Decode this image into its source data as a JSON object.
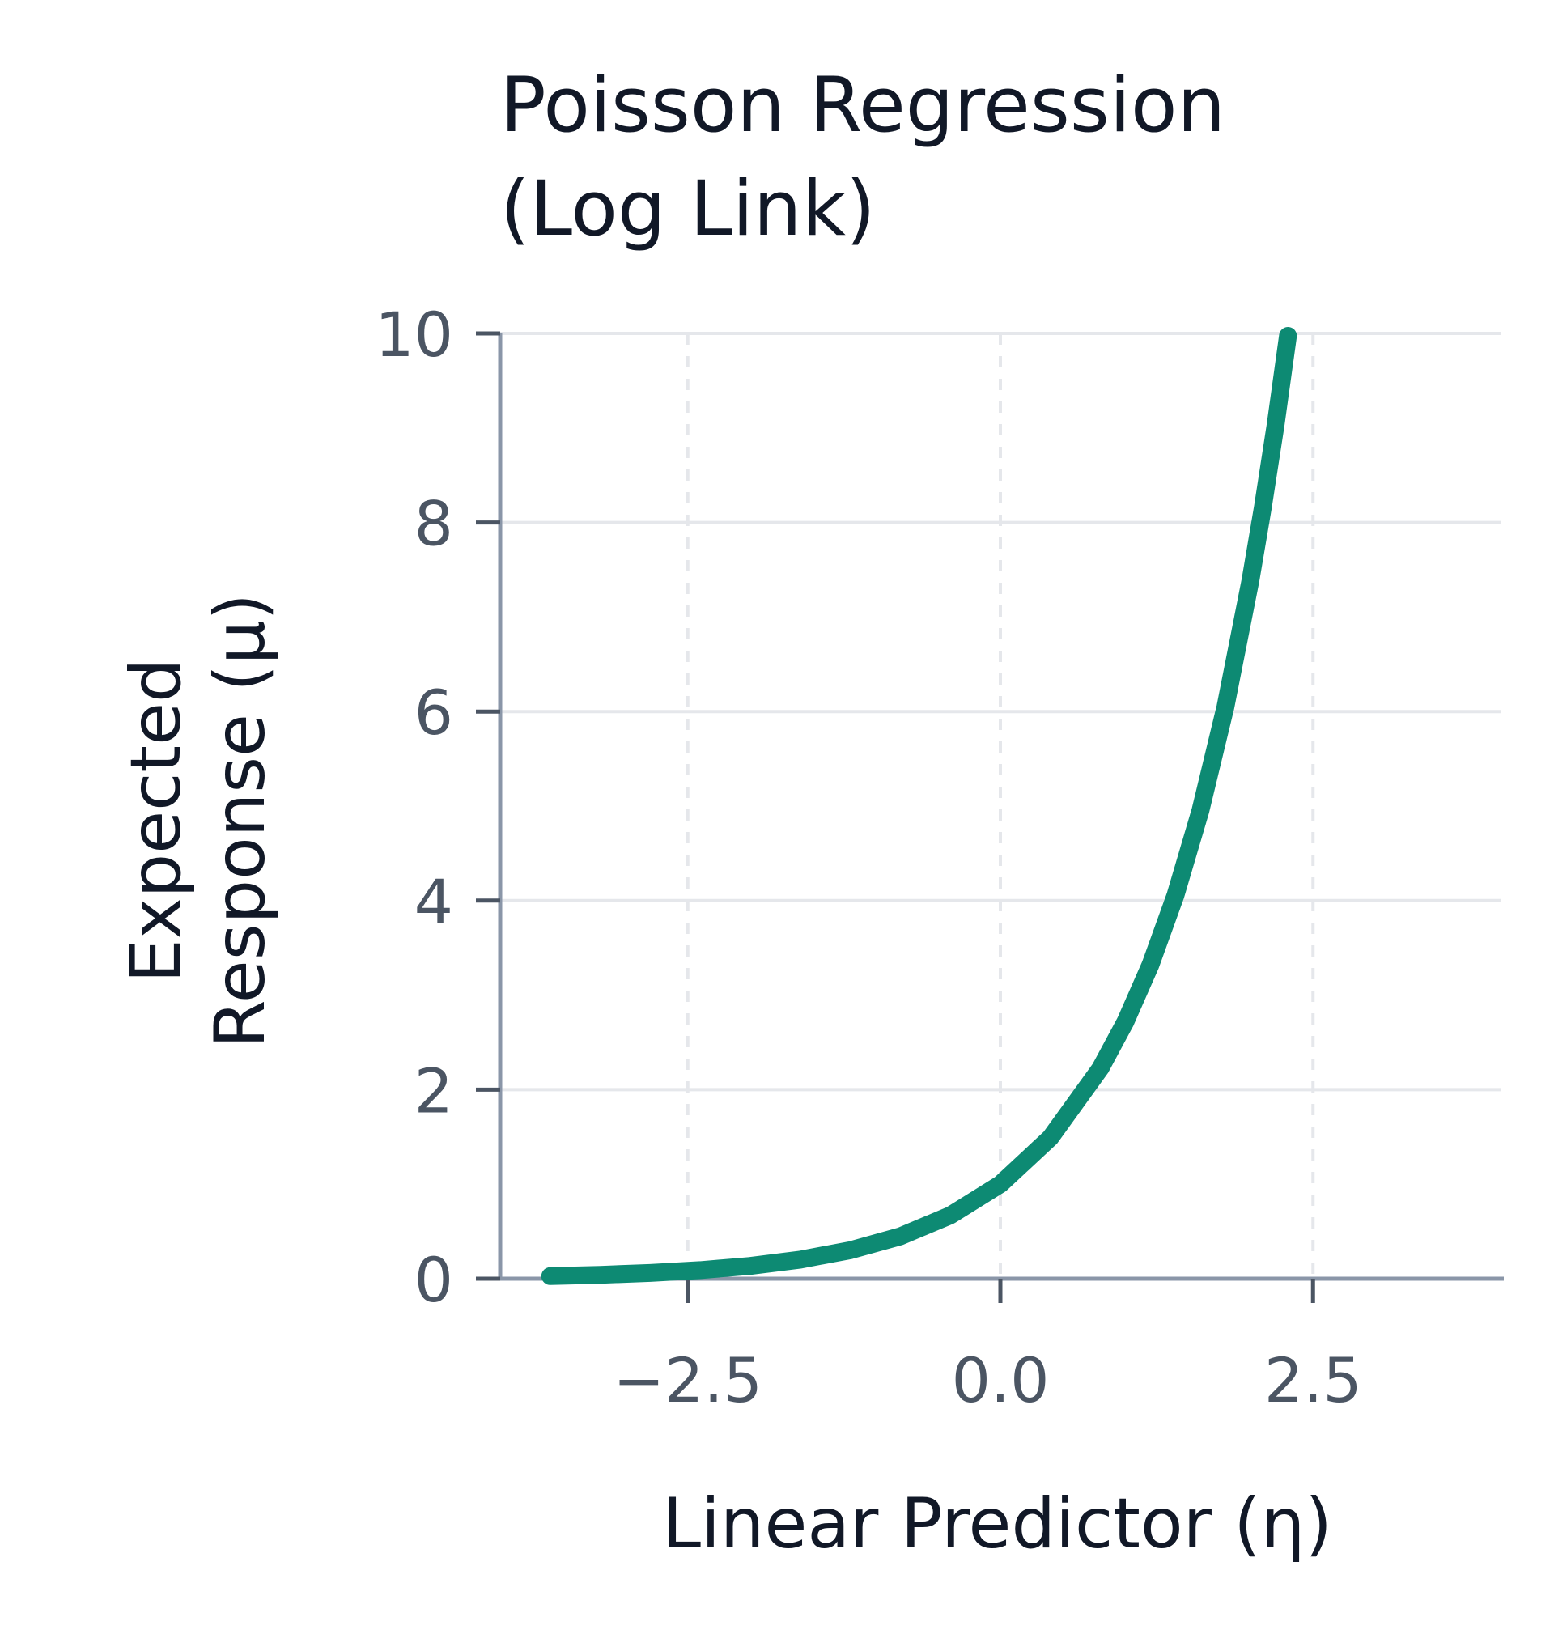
{
  "chart_data": {
    "type": "line",
    "title_lines": [
      "Poisson Regression",
      "(Log Link)"
    ],
    "xlabel": "Linear Predictor (η)",
    "ylabel_lines": [
      "Expected",
      "Response (μ)"
    ],
    "xlim": [
      -4.0,
      4.0
    ],
    "ylim": [
      0,
      10
    ],
    "x_ticks": [
      -2.5,
      0.0,
      2.5
    ],
    "x_tick_labels": [
      "−2.5",
      "0.0",
      "2.5"
    ],
    "y_ticks": [
      0,
      2,
      4,
      6,
      8,
      10
    ],
    "y_tick_labels": [
      "0",
      "2",
      "4",
      "6",
      "8",
      "10"
    ],
    "grid": true,
    "series": [
      {
        "color": "#0d8a73",
        "x": [
          -3.6,
          -3.2,
          -2.8,
          -2.4,
          -2.0,
          -1.6,
          -1.2,
          -0.8,
          -0.4,
          0.0,
          0.4,
          0.8,
          1.0,
          1.2,
          1.4,
          1.6,
          1.8,
          2.0,
          2.1,
          2.2,
          2.3
        ],
        "y": [
          0.027,
          0.041,
          0.061,
          0.091,
          0.135,
          0.202,
          0.301,
          0.449,
          0.67,
          1.0,
          1.492,
          2.226,
          2.718,
          3.32,
          4.055,
          4.953,
          6.05,
          7.389,
          8.166,
          9.025,
          9.974
        ]
      }
    ]
  }
}
